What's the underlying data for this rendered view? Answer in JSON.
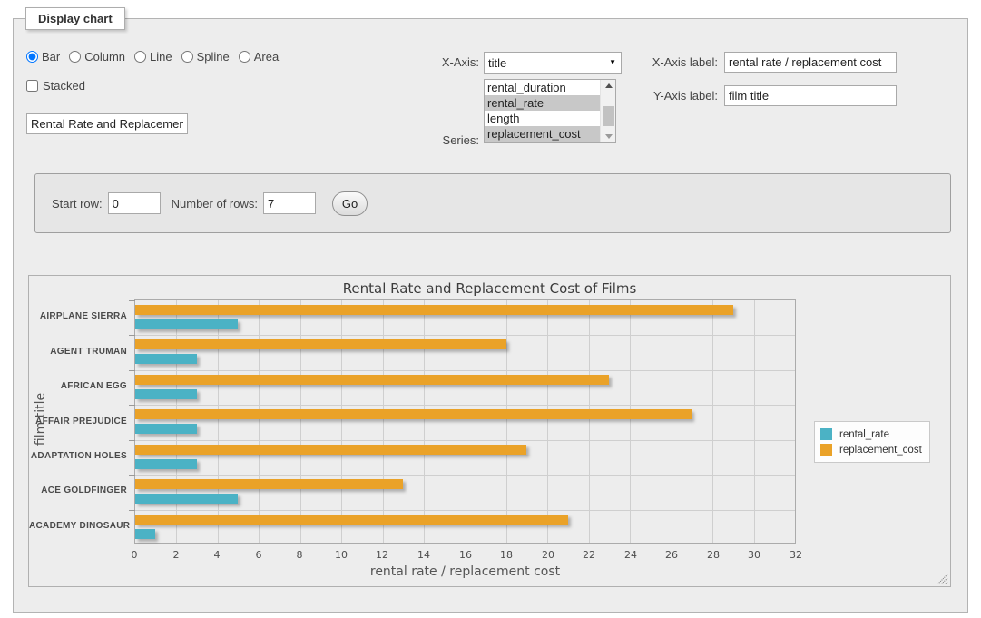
{
  "fieldset": {
    "legend": "Display chart"
  },
  "controls": {
    "chart_types": [
      {
        "label": "Bar",
        "selected": true
      },
      {
        "label": "Column",
        "selected": false
      },
      {
        "label": "Line",
        "selected": false
      },
      {
        "label": "Spline",
        "selected": false
      },
      {
        "label": "Area",
        "selected": false
      }
    ],
    "stacked": {
      "label": "Stacked",
      "checked": false
    },
    "chart_title_input": {
      "value": "Rental Rate and Replacement Cost of Films"
    },
    "x_axis": {
      "label": "X-Axis:",
      "selected_option": "title"
    },
    "series_select": {
      "label": "Series:",
      "options": [
        {
          "label": "rental_duration",
          "selected": false
        },
        {
          "label": "rental_rate",
          "selected": true
        },
        {
          "label": "length",
          "selected": false
        },
        {
          "label": "replacement_cost",
          "selected": true
        }
      ]
    },
    "x_axis_label": {
      "label": "X-Axis label:",
      "value": "rental rate / replacement cost"
    },
    "y_axis_label": {
      "label": "Y-Axis label:",
      "value": "film title"
    }
  },
  "rows_panel": {
    "start_row_label": "Start row:",
    "start_row_value": "0",
    "num_rows_label": "Number of rows:",
    "num_rows_value": "7",
    "go_label": "Go"
  },
  "chart_data": {
    "type": "bar",
    "orientation": "horizontal",
    "title": "Rental Rate and Replacement Cost of Films",
    "xlabel": "rental rate / replacement cost",
    "ylabel": "film title",
    "categories_top_to_bottom": [
      "AIRPLANE SIERRA",
      "AGENT TRUMAN",
      "AFRICAN EGG",
      "AFFAIR PREJUDICE",
      "ADAPTATION HOLES",
      "ACE GOLDFINGER",
      "ACADEMY DINOSAUR"
    ],
    "series": [
      {
        "name": "rental_rate",
        "color": "#4bb2c5",
        "values": [
          4.99,
          2.99,
          2.99,
          2.99,
          2.99,
          4.99,
          0.99
        ]
      },
      {
        "name": "replacement_cost",
        "color": "#eaa228",
        "values": [
          28.99,
          17.99,
          22.99,
          26.99,
          18.99,
          12.99,
          20.99
        ]
      }
    ],
    "bar_order_within_group_top_first": [
      "replacement_cost",
      "rental_rate"
    ],
    "xlim": [
      0,
      32
    ],
    "xtick_step": 2,
    "grid": true,
    "legend_position": "right"
  }
}
